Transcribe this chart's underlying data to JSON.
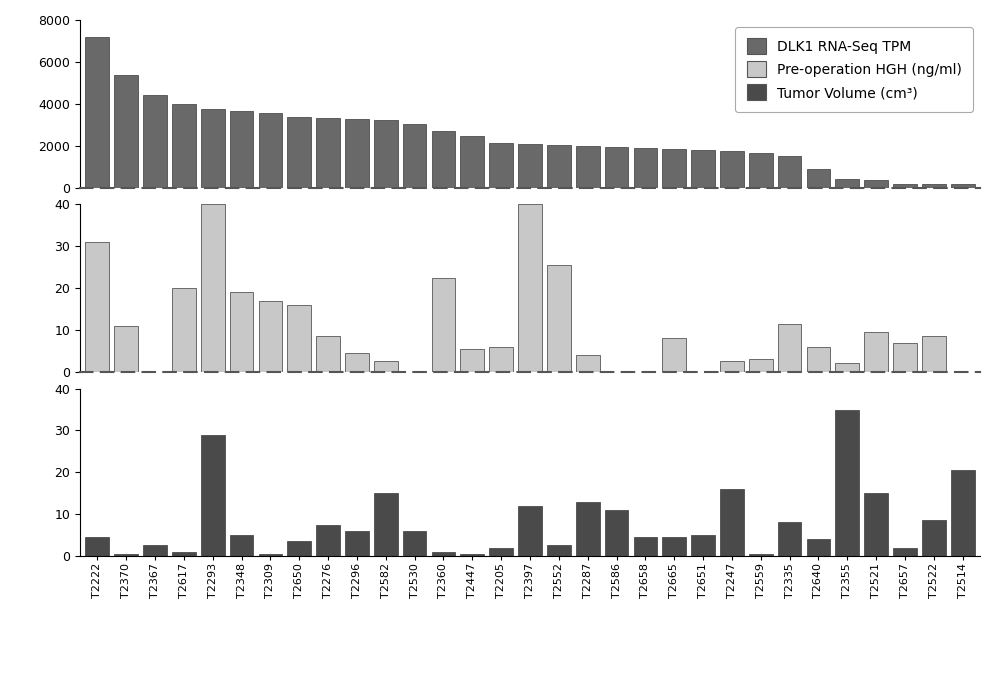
{
  "categories": [
    "T2222",
    "T2370",
    "T2367",
    "T2617",
    "T2293",
    "T2348",
    "T2309",
    "T2650",
    "T2276",
    "T2296",
    "T2582",
    "T2530",
    "T2360",
    "T2447",
    "T2205",
    "T2397",
    "T2552",
    "T2287",
    "T2586",
    "T2658",
    "T2665",
    "T2651",
    "T2247",
    "T2559",
    "T2335",
    "T2640",
    "T2355",
    "T2521",
    "T2657",
    "T2522",
    "T2514"
  ],
  "dlk1_tpm": [
    7200,
    5400,
    4450,
    4000,
    3750,
    3650,
    3550,
    3400,
    3350,
    3300,
    3250,
    3050,
    2700,
    2450,
    2150,
    2100,
    2050,
    2000,
    1950,
    1900,
    1850,
    1800,
    1750,
    1650,
    1500,
    900,
    400,
    350,
    200,
    180,
    160
  ],
  "hgh": [
    31,
    11,
    0,
    20,
    40,
    19,
    17,
    16,
    8.5,
    4.5,
    2.5,
    0,
    22.5,
    5.5,
    6,
    40,
    25.5,
    4,
    0,
    0,
    8,
    0,
    2.5,
    3,
    11.5,
    6,
    2,
    9.5,
    7,
    8.5,
    0
  ],
  "tumor_vol": [
    4.5,
    0.5,
    2.5,
    1,
    29,
    5,
    0.5,
    3.5,
    7.5,
    6,
    15,
    6,
    1,
    0.5,
    2,
    12,
    2.5,
    13,
    11,
    4.5,
    4.5,
    5,
    16,
    0.5,
    8,
    4,
    35,
    15,
    2,
    8.5,
    20.5
  ],
  "color_dlk1": "#696969",
  "color_hgh": "#c8c8c8",
  "color_tumor": "#4a4a4a",
  "bar_edge_color": "#3a3a3a",
  "dashed_line_color": "#555555"
}
